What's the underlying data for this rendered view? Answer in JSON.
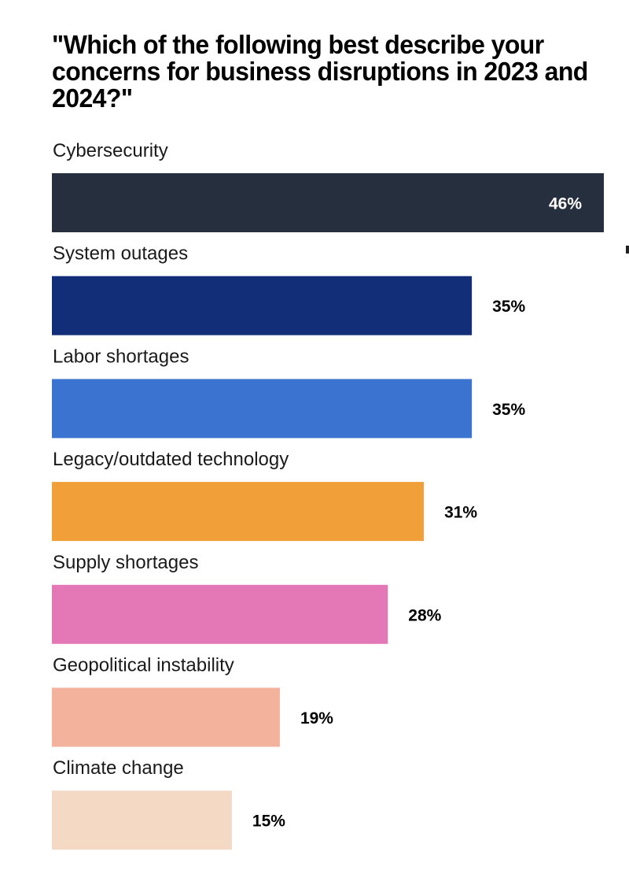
{
  "chart_data": {
    "type": "bar",
    "orientation": "horizontal",
    "title": "\"Which of the following best describe your concerns for business disruptions in 2023 and 2024?\"",
    "categories": [
      "Cybersecurity",
      "System outages",
      "Labor shortages",
      "Legacy/outdated technology",
      "Supply shortages",
      "Geopolitical instability",
      "Climate change"
    ],
    "values": [
      46,
      35,
      35,
      31,
      28,
      19,
      15
    ],
    "value_labels": [
      "46%",
      "35%",
      "35%",
      "31%",
      "28%",
      "19%",
      "15%"
    ],
    "colors": [
      "#262f3e",
      "#122e78",
      "#3b73d0",
      "#f19f38",
      "#e477b6",
      "#f3b29c",
      "#f4dac4"
    ],
    "value_label_colors": [
      "#ffffff",
      "#000000",
      "#000000",
      "#000000",
      "#000000",
      "#000000",
      "#000000"
    ],
    "value_label_inside": [
      true,
      false,
      false,
      false,
      false,
      false,
      false
    ],
    "xlabel": "",
    "ylabel": "",
    "xlim": [
      0,
      46
    ],
    "grid": false,
    "legend": "none",
    "unit": "%"
  }
}
